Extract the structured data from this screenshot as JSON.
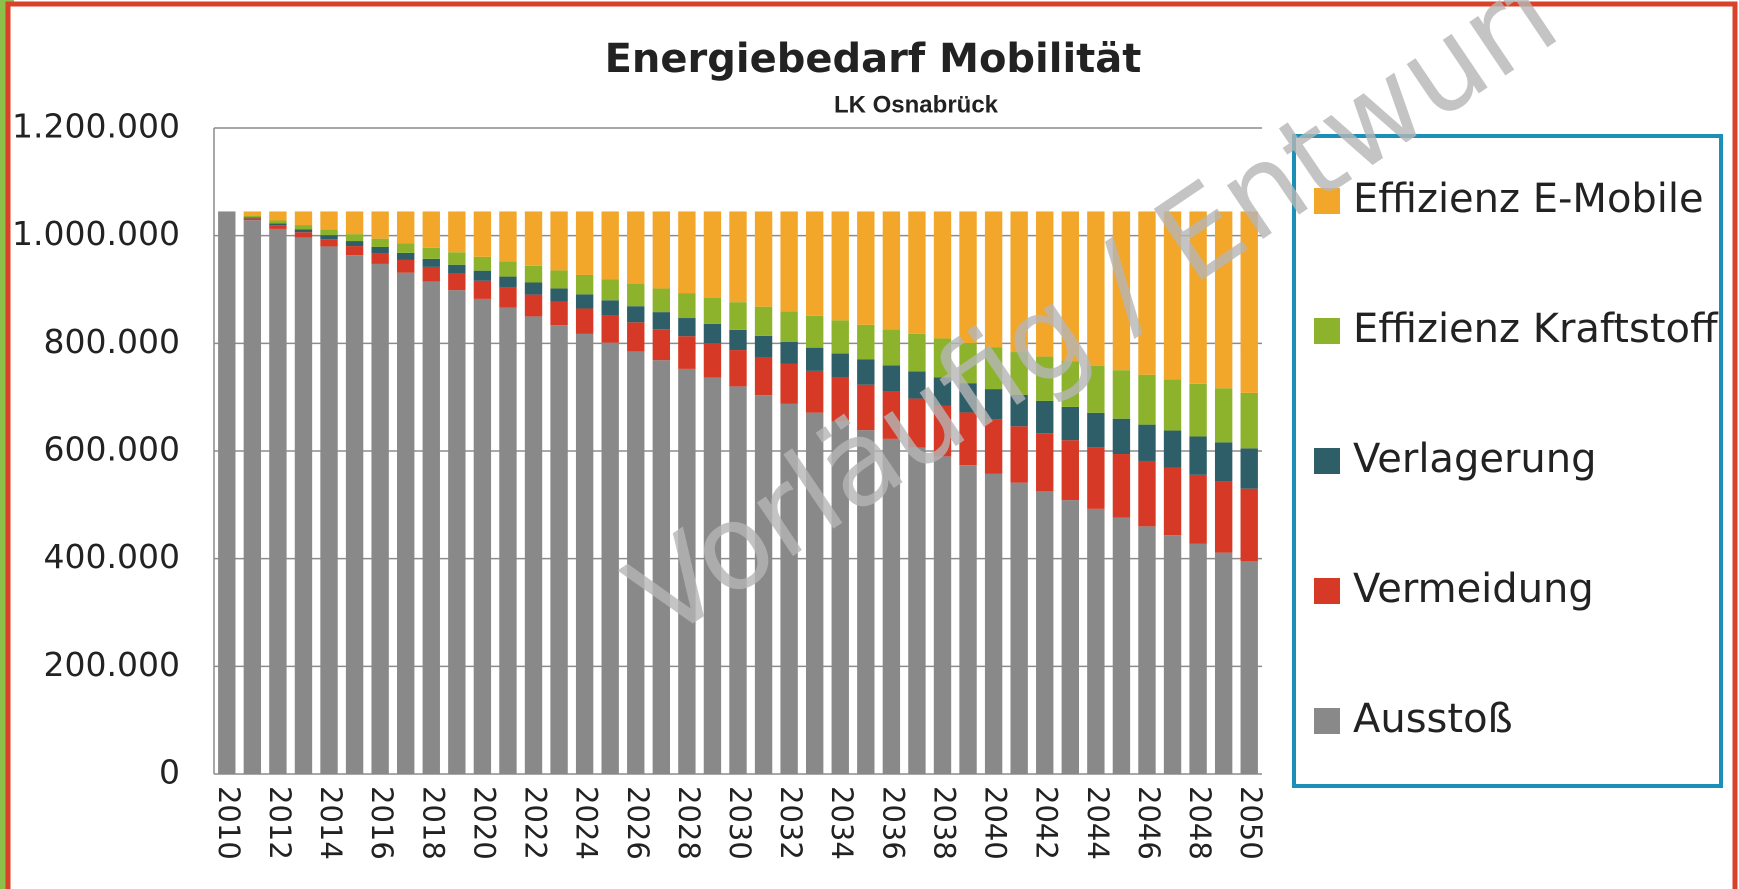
{
  "chart_data": {
    "type": "stacked_bar",
    "title": "Energiebedarf Mobilität",
    "subtitle": "LK Osnabrück",
    "annotation": "Vorläufig / Entwurf",
    "categories": [
      "2010",
      null,
      "2012",
      null,
      "2014",
      null,
      "2016",
      null,
      "2018",
      null,
      "2020",
      null,
      "2022",
      null,
      "2024",
      null,
      "2026",
      null,
      "2028",
      null,
      "2030",
      null,
      "2032",
      null,
      "2034",
      null,
      "2036",
      null,
      "2038",
      null,
      "2040",
      null,
      "2042",
      null,
      "2044",
      null,
      "2046",
      null,
      "2048",
      null,
      "2050"
    ],
    "series": [
      {
        "name": "Ausstoß",
        "color": "#898989",
        "values": [
          1045000,
          1028750,
          1012500,
          996250,
          980000,
          963750,
          947500,
          931250,
          915000,
          898750,
          882500,
          866250,
          850000,
          833750,
          817500,
          801250,
          785000,
          768750,
          752500,
          736250,
          720000,
          703750,
          687500,
          671250,
          655000,
          638750,
          622500,
          606250,
          590000,
          573750,
          557500,
          541250,
          525000,
          508750,
          492500,
          476250,
          460000,
          443750,
          427500,
          411250,
          395000
        ]
      },
      {
        "name": "Vermeidung",
        "color": "#d63a26",
        "values": [
          0,
          3375,
          6750,
          10125,
          13500,
          16875,
          20250,
          23625,
          27000,
          30375,
          33750,
          37125,
          40500,
          43875,
          47250,
          50625,
          54000,
          57375,
          60750,
          64125,
          67500,
          70875,
          74250,
          77625,
          81000,
          84375,
          87750,
          91125,
          94500,
          97875,
          101250,
          104625,
          108000,
          111375,
          114750,
          118125,
          121500,
          124875,
          128250,
          131625,
          135000
        ]
      },
      {
        "name": "Verlagerung",
        "color": "#2e5f68",
        "values": [
          0,
          1875,
          3750,
          5625,
          7500,
          9375,
          11250,
          13125,
          15000,
          16875,
          18750,
          20625,
          22500,
          24375,
          26250,
          28125,
          30000,
          31875,
          33750,
          35625,
          37500,
          39375,
          41250,
          43125,
          45000,
          46875,
          48750,
          50625,
          52500,
          54375,
          56250,
          58125,
          60000,
          61875,
          63750,
          65625,
          67500,
          69375,
          71250,
          73125,
          75000
        ]
      },
      {
        "name": "Effizienz Kraftstoff",
        "color": "#8db32d",
        "values": [
          0,
          2575,
          5150,
          7725,
          10300,
          12875,
          15450,
          18025,
          20600,
          23175,
          25750,
          28325,
          30900,
          33475,
          36050,
          38625,
          41200,
          43775,
          46350,
          48925,
          51500,
          54075,
          56650,
          59225,
          61800,
          64375,
          66950,
          69525,
          72100,
          74675,
          77250,
          79825,
          82400,
          84975,
          87550,
          90125,
          92700,
          95275,
          97850,
          100425,
          103000
        ]
      },
      {
        "name": "Effizienz E-Mobile",
        "color": "#f2a72a",
        "values": [
          0,
          8425,
          16850,
          25275,
          33700,
          42125,
          50550,
          58975,
          67400,
          75825,
          84250,
          92675,
          101100,
          109525,
          117950,
          126375,
          134800,
          143225,
          151650,
          160075,
          168500,
          176925,
          185350,
          193775,
          202200,
          210625,
          219050,
          227475,
          235900,
          244325,
          252750,
          261175,
          269600,
          278025,
          286450,
          294875,
          303300,
          311725,
          320150,
          328575,
          337000
        ]
      }
    ],
    "ylim": [
      0,
      1200000
    ],
    "yticks": [
      0,
      {
        "value": 200000,
        "label": "200.000"
      },
      {
        "value": 400000,
        "label": "400.000"
      },
      {
        "value": 600000,
        "label": "600.000"
      },
      {
        "value": 800000,
        "label": "800.000"
      },
      {
        "value": 1000000,
        "label": "1.000.000"
      },
      {
        "value": 1200000,
        "label": "1.200.000"
      }
    ],
    "grid": true,
    "legend": "right"
  }
}
